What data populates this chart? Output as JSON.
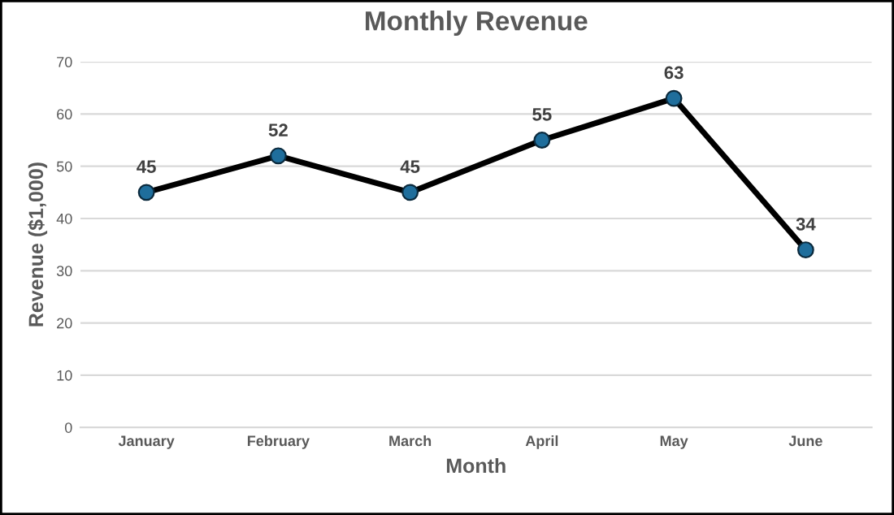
{
  "chart_data": {
    "type": "line",
    "title": "Monthly Revenue",
    "xlabel": "Month",
    "ylabel": "Revenue ($1,000)",
    "categories": [
      "January",
      "February",
      "March",
      "April",
      "May",
      "June"
    ],
    "series": [
      {
        "color": "#000000",
        "colors": [
          "#1f6e9c",
          "#1f6e9c",
          "#1f6e9c",
          "#1f6e9c",
          "#1f6e9c",
          "#1f6e9c"
        ],
        "values": [
          45,
          52,
          45,
          55,
          63,
          34
        ]
      }
    ],
    "ylim": [
      0,
      70
    ],
    "yticks": [
      0,
      10,
      20,
      30,
      40,
      50,
      60,
      70
    ],
    "grid": "y",
    "marker": "circle",
    "line_style": "solid",
    "data_labels": true,
    "legend": false
  }
}
